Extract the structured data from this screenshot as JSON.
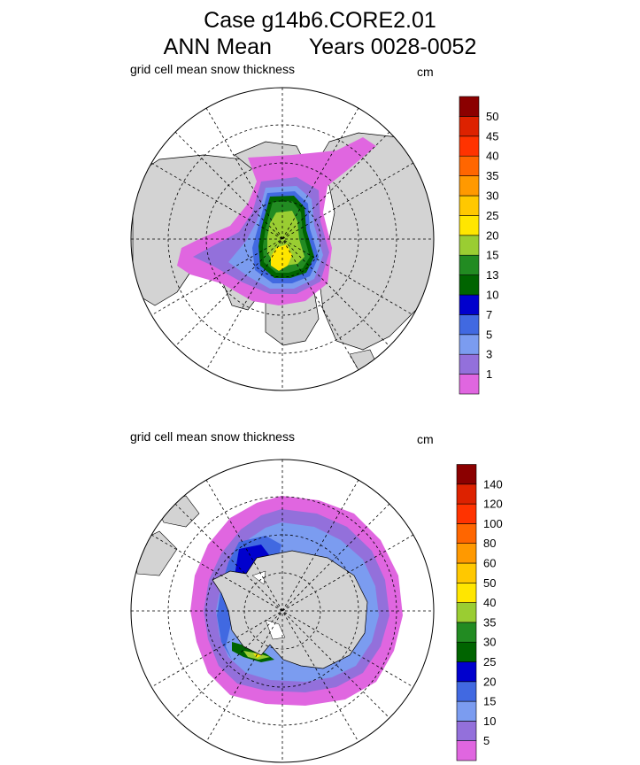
{
  "header": {
    "line1": "Case g14b6.CORE2.01",
    "line2a": "ANN Mean",
    "line2b": "Years 0028-0052"
  },
  "north": {
    "label": "grid cell mean snow thickness",
    "unit": "cm",
    "levels": [
      "1",
      "3",
      "5",
      "7",
      "10",
      "13",
      "15",
      "20",
      "25",
      "30",
      "35",
      "40",
      "45",
      "50"
    ],
    "colors": [
      "#e066e0",
      "#9370db",
      "#7b9cf0",
      "#4169e1",
      "#0000cd",
      "#006400",
      "#228b22",
      "#9acd32",
      "#ffe600",
      "#ffc800",
      "#ff9900",
      "#ff6600",
      "#ff3300",
      "#dd2200",
      "#8b0000"
    ]
  },
  "south": {
    "label": "grid cell mean snow thickness",
    "unit": "cm",
    "levels": [
      "5",
      "10",
      "15",
      "20",
      "25",
      "30",
      "35",
      "40",
      "50",
      "60",
      "80",
      "100",
      "120",
      "140"
    ],
    "colors": [
      "#e066e0",
      "#9370db",
      "#7b9cf0",
      "#4169e1",
      "#0000cd",
      "#006400",
      "#228b22",
      "#9acd32",
      "#ffe600",
      "#ffc800",
      "#ff9900",
      "#ff6600",
      "#ff3300",
      "#dd2200",
      "#8b0000"
    ]
  }
}
